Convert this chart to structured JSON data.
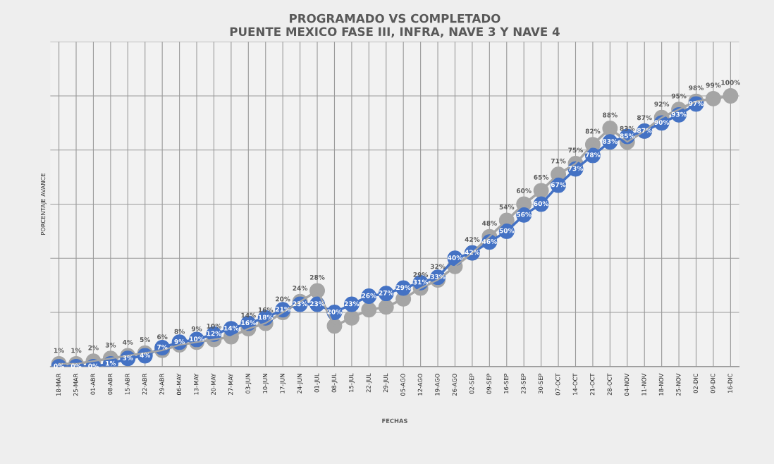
{
  "chart_data": {
    "type": "line",
    "title": "PROGRAMADO VS COMPLETADO\nPUENTE MEXICO FASE III, INFRA, NAVE 3 Y NAVE 4",
    "xlabel": "FECHAS",
    "ylabel": "PORCENTAJE AVANCE",
    "categories": [
      "18-MAR",
      "25-MAR",
      "01-ABR",
      "08-ABR",
      "15-ABR",
      "22-ABR",
      "29-ABR",
      "06-MAY",
      "13-MAY",
      "20-MAY",
      "27-MAY",
      "03-JUN",
      "10-JUN",
      "17-JUN",
      "24-JUN",
      "01-JUL",
      "08-JUL",
      "15-JUL",
      "22-JUL",
      "29-JUL",
      "05-AGO",
      "12-AGO",
      "19-AGO",
      "26-AGO",
      "02-SEP",
      "09-SEP",
      "16-SEP",
      "23-SEP",
      "30-SEP",
      "07-OCT",
      "14-OCT",
      "21-OCT",
      "28-OCT",
      "04-NOV",
      "11-NOV",
      "18-NOV",
      "25-NOV",
      "02-DIC",
      "09-DIC",
      "16-DIC"
    ],
    "series": [
      {
        "color": "#a5a5a5",
        "values": [
          1,
          1,
          2,
          3,
          4,
          5,
          6,
          8,
          9,
          10,
          11,
          14,
          16,
          20,
          24,
          28,
          15,
          18,
          21,
          22,
          25,
          29,
          32,
          37,
          42,
          48,
          54,
          60,
          65,
          71,
          75,
          82,
          88,
          83,
          87,
          92,
          95,
          98,
          99,
          100
        ],
        "value_labels": [
          "1%",
          "1%",
          "2%",
          "3%",
          "4%",
          "5%",
          "6%",
          "8%",
          "9%",
          "10%",
          null,
          "14%",
          "16%",
          "20%",
          "24%",
          "28%",
          null,
          null,
          null,
          null,
          null,
          "29%",
          "32%",
          null,
          "42%",
          "48%",
          "54%",
          "60%",
          "65%",
          "71%",
          "75%",
          "82%",
          "88%",
          "83%",
          "87%",
          "92%",
          "95%",
          "98%",
          "99%",
          "100%"
        ]
      },
      {
        "color": "#4472c4",
        "values": [
          0,
          0,
          0,
          1,
          3,
          4,
          7,
          9,
          10,
          12,
          14,
          16,
          18,
          21,
          23,
          23,
          20,
          23,
          26,
          27,
          29,
          31,
          33,
          40,
          42,
          46,
          50,
          56,
          60,
          67,
          73,
          78,
          83,
          85,
          87,
          90,
          93,
          97,
          null,
          null
        ],
        "value_labels": [
          "0%",
          "0%",
          "0%",
          "1%",
          "3%",
          "4%",
          "7%",
          "9%",
          "10%",
          "12%",
          "14%",
          "16%",
          "18%",
          "21%",
          "23%",
          "23%",
          "20%",
          "23%",
          "26%",
          "27%",
          "29%",
          "31%",
          "33%",
          "40%",
          "42%",
          "46%",
          "50%",
          "56%",
          "60%",
          "67%",
          "73%",
          "78%",
          "83%",
          "85%",
          "87%",
          "90%",
          "93%",
          "97%",
          null,
          null
        ]
      }
    ],
    "ylim": [
      0,
      120
    ],
    "yticks": [
      {
        "value": 0,
        "label": null
      },
      {
        "value": 20,
        "label": null
      },
      {
        "value": 40,
        "label": null
      },
      {
        "value": 60,
        "label": null
      },
      {
        "value": 80,
        "label": null
      },
      {
        "value": 100,
        "label": null
      },
      {
        "value": 120,
        "label": null
      }
    ],
    "tick_labels": "x",
    "grid": true,
    "marker": "circle",
    "line_style": "solid"
  }
}
